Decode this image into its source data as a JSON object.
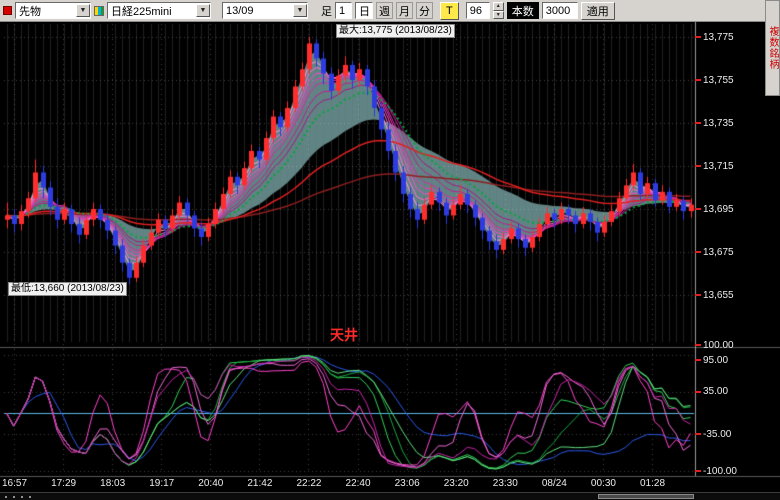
{
  "icons": {
    "dropdown_arrow": "▼",
    "spinner_up": "▲",
    "spinner_down": "▼"
  },
  "toolbar": {
    "instrument_type": "先物",
    "instrument": "日経225mini",
    "contract": "13/09",
    "period_label": "足",
    "period_value": "1",
    "unit_day": "日",
    "unit_week": "週",
    "unit_month": "月",
    "unit_minute": "分",
    "tick_button": "T",
    "bars_value": "96",
    "bars_label": "本数",
    "count_value": "3000",
    "apply_label": "適用",
    "side_panel_label": "複数銘柄"
  },
  "chart": {
    "max_annotation": "最大:13,775 (2013/08/23)",
    "min_annotation": "最低:13,660 (2013/08/23)",
    "ceiling_label": "天井"
  },
  "chart_data": {
    "type": "candlestick",
    "max_price": 13775,
    "min_price": 13660,
    "y_axis_labels": [
      "13,775",
      "13,755",
      "13,735",
      "13,715",
      "13,695",
      "13,675",
      "13,655"
    ],
    "oscillator_axis_labels": [
      "100.00",
      "95.00",
      "35.00",
      "-35.00",
      "-100.00"
    ],
    "x_axis_labels": [
      "16:57",
      "17:29",
      "18:03",
      "19:17",
      "20:40",
      "21:42",
      "22:22",
      "22:40",
      "23:06",
      "23:20",
      "23:30",
      "08/24",
      "00:30",
      "01:28"
    ],
    "ohlc": [
      [
        13690,
        13698,
        13686,
        13692
      ],
      [
        13692,
        13695,
        13684,
        13688
      ],
      [
        13688,
        13697,
        13685,
        13694
      ],
      [
        13694,
        13703,
        13691,
        13700
      ],
      [
        13700,
        13718,
        13698,
        13712
      ],
      [
        13712,
        13715,
        13700,
        13705
      ],
      [
        13705,
        13708,
        13692,
        13696
      ],
      [
        13696,
        13700,
        13686,
        13690
      ],
      [
        13690,
        13698,
        13688,
        13695
      ],
      [
        13695,
        13697,
        13684,
        13688
      ],
      [
        13688,
        13691,
        13679,
        13683
      ],
      [
        13683,
        13692,
        13681,
        13690
      ],
      [
        13690,
        13698,
        13687,
        13695
      ],
      [
        13695,
        13697,
        13686,
        13690
      ],
      [
        13690,
        13693,
        13681,
        13685
      ],
      [
        13685,
        13687,
        13674,
        13678
      ],
      [
        13678,
        13681,
        13666,
        13670
      ],
      [
        13670,
        13672,
        13660,
        13663
      ],
      [
        13663,
        13673,
        13661,
        13670
      ],
      [
        13670,
        13681,
        13668,
        13678
      ],
      [
        13678,
        13687,
        13676,
        13684
      ],
      [
        13684,
        13693,
        13682,
        13690
      ],
      [
        13690,
        13692,
        13682,
        13686
      ],
      [
        13686,
        13695,
        13684,
        13692
      ],
      [
        13692,
        13701,
        13690,
        13698
      ],
      [
        13698,
        13700,
        13689,
        13692
      ],
      [
        13692,
        13694,
        13682,
        13686
      ],
      [
        13686,
        13689,
        13678,
        13682
      ],
      [
        13682,
        13691,
        13680,
        13688
      ],
      [
        13688,
        13698,
        13686,
        13695
      ],
      [
        13695,
        13705,
        13693,
        13702
      ],
      [
        13702,
        13713,
        13700,
        13710
      ],
      [
        13710,
        13712,
        13702,
        13706
      ],
      [
        13706,
        13717,
        13704,
        13714
      ],
      [
        13714,
        13725,
        13712,
        13722
      ],
      [
        13722,
        13724,
        13714,
        13718
      ],
      [
        13718,
        13731,
        13716,
        13728
      ],
      [
        13728,
        13741,
        13726,
        13738
      ],
      [
        13738,
        13740,
        13729,
        13733
      ],
      [
        13733,
        13745,
        13731,
        13742
      ],
      [
        13742,
        13755,
        13740,
        13752
      ],
      [
        13752,
        13763,
        13750,
        13760
      ],
      [
        13760,
        13775,
        13758,
        13772
      ],
      [
        13772,
        13774,
        13761,
        13765
      ],
      [
        13765,
        13768,
        13753,
        13758
      ],
      [
        13758,
        13761,
        13746,
        13750
      ],
      [
        13750,
        13760,
        13748,
        13757
      ],
      [
        13757,
        13766,
        13754,
        13762
      ],
      [
        13762,
        13764,
        13751,
        13755
      ],
      [
        13755,
        13763,
        13752,
        13760
      ],
      [
        13760,
        13762,
        13748,
        13752
      ],
      [
        13752,
        13755,
        13738,
        13742
      ],
      [
        13742,
        13745,
        13728,
        13732
      ],
      [
        13732,
        13735,
        13718,
        13722
      ],
      [
        13722,
        13725,
        13708,
        13712
      ],
      [
        13712,
        13715,
        13698,
        13702
      ],
      [
        13702,
        13705,
        13691,
        13695
      ],
      [
        13695,
        13698,
        13686,
        13690
      ],
      [
        13690,
        13700,
        13688,
        13697
      ],
      [
        13697,
        13706,
        13695,
        13703
      ],
      [
        13703,
        13705,
        13694,
        13698
      ],
      [
        13698,
        13700,
        13688,
        13692
      ],
      [
        13692,
        13700,
        13690,
        13697
      ],
      [
        13697,
        13706,
        13695,
        13702
      ],
      [
        13702,
        13704,
        13693,
        13697
      ],
      [
        13697,
        13699,
        13687,
        13691
      ],
      [
        13691,
        13693,
        13681,
        13685
      ],
      [
        13685,
        13687,
        13676,
        13680
      ],
      [
        13680,
        13683,
        13672,
        13676
      ],
      [
        13676,
        13684,
        13674,
        13681
      ],
      [
        13681,
        13689,
        13679,
        13686
      ],
      [
        13686,
        13688,
        13677,
        13681
      ],
      [
        13681,
        13683,
        13673,
        13677
      ],
      [
        13677,
        13685,
        13675,
        13682
      ],
      [
        13682,
        13691,
        13680,
        13688
      ],
      [
        13688,
        13696,
        13686,
        13693
      ],
      [
        13693,
        13695,
        13686,
        13690
      ],
      [
        13690,
        13698,
        13688,
        13695
      ],
      [
        13695,
        13697,
        13688,
        13692
      ],
      [
        13692,
        13694,
        13684,
        13688
      ],
      [
        13688,
        13696,
        13686,
        13693
      ],
      [
        13693,
        13695,
        13685,
        13689
      ],
      [
        13689,
        13691,
        13680,
        13684
      ],
      [
        13684,
        13692,
        13682,
        13689
      ],
      [
        13689,
        13697,
        13687,
        13694
      ],
      [
        13694,
        13703,
        13692,
        13700
      ],
      [
        13700,
        13709,
        13698,
        13706
      ],
      [
        13706,
        13716,
        13704,
        13712
      ],
      [
        13712,
        13714,
        13699,
        13702
      ],
      [
        13702,
        13710,
        13700,
        13707
      ],
      [
        13707,
        13709,
        13696,
        13699
      ],
      [
        13699,
        13706,
        13697,
        13703
      ],
      [
        13703,
        13705,
        13693,
        13696
      ],
      [
        13696,
        13702,
        13694,
        13699
      ],
      [
        13699,
        13701,
        13690,
        13694
      ],
      [
        13694,
        13700,
        13691,
        13697
      ]
    ],
    "colors": {
      "background": "#000000",
      "up": "#ff2e2e",
      "down": "#2e3cdf",
      "grid": "#3d3d3d",
      "fine_grid": "rgba(110,110,110,0.30)",
      "axis_line": "#9a9a9a",
      "separator": "#5a5a5a",
      "band_fill": "rgba(175,240,240,0.55)",
      "tick": "#e02020"
    },
    "indicators": {
      "ribbon": {
        "periods": [
          3,
          4,
          5,
          6,
          7,
          9,
          11
        ],
        "colors": [
          "#ff9ae0",
          "#ff6fd8",
          "#ff49cf",
          "#f335bd",
          "#d82aa8",
          "#bb2093",
          "#a01a83"
        ]
      },
      "green_ma": {
        "period": 14,
        "color": "#00a83c"
      },
      "red_ma": {
        "period": 40,
        "color": "#e02020"
      },
      "slow_ma": {
        "period": 90,
        "color": "#8e1f1f"
      },
      "band": {
        "fast": 2,
        "slow": 26
      },
      "osc_fast": {
        "periods": [
          5,
          8,
          12
        ],
        "colors": [
          "#ff44cc",
          "#f06ad8",
          "#c824a8"
        ],
        "smooth": 3
      },
      "osc_slow": {
        "periods": [
          18,
          24,
          30
        ],
        "colors": [
          "#35cf5a",
          "#19a83e",
          "#62e080"
        ],
        "smooth": 3
      },
      "osc_blue": {
        "period": 48,
        "color": "#2b59e8",
        "smooth": 5
      },
      "zero_line": {
        "value": 0,
        "color": "#58b8e8"
      },
      "osc_gridlines": [
        95,
        35,
        -35,
        -95
      ]
    }
  }
}
